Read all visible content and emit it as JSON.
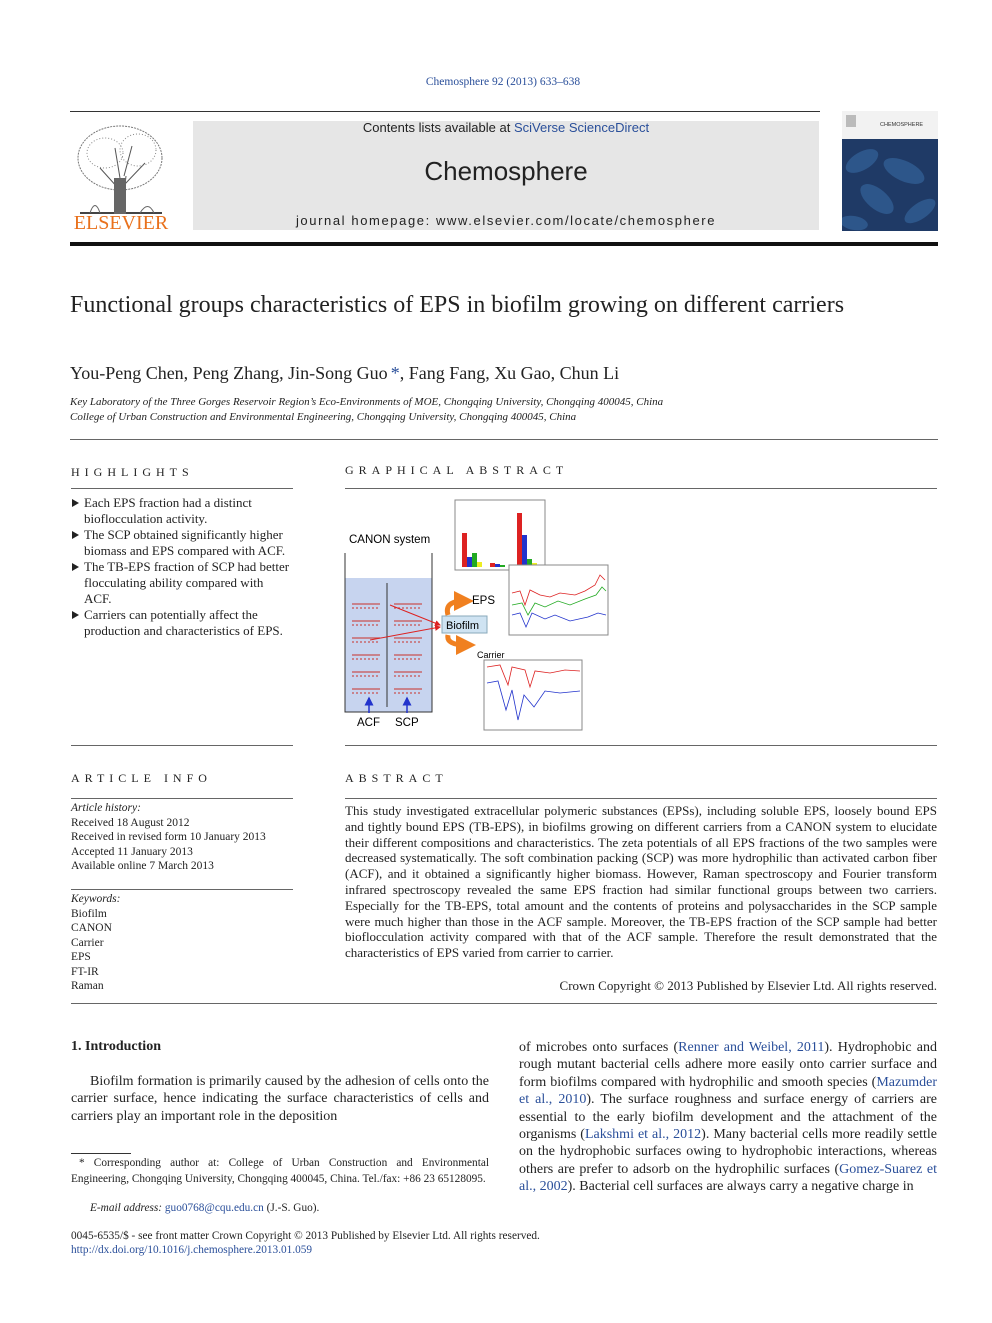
{
  "header": {
    "journal_ref": "Chemosphere 92 (2013) 633–638",
    "contents_prefix": "Contents lists available at ",
    "contents_link": "SciVerse ScienceDirect",
    "journal_name": "Chemosphere",
    "homepage_prefix": "journal homepage: ",
    "homepage_url": "www.elsevier.com/locate/chemosphere",
    "publisher_logo": "ELSEVIER",
    "cover_title": "CHEMOSPHERE"
  },
  "article": {
    "title": "Functional groups characteristics of EPS in biofilm growing on different carriers",
    "authors_before": "You-Peng Chen, Peng Zhang, Jin-Song Guo",
    "corresponding_mark": "*",
    "authors_after": ", Fang Fang, Xu Gao, Chun Li",
    "affiliations": [
      "Key Laboratory of the Three Gorges Reservoir Region’s Eco-Environments of MOE, Chongqing University, Chongqing 400045, China",
      "College of Urban Construction and Environmental Engineering, Chongqing University, Chongqing 400045, China"
    ]
  },
  "highlights": {
    "heading": "HIGHLIGHTS",
    "items": [
      "Each EPS fraction had a distinct bioflocculation activity.",
      "The SCP obtained significantly higher biomass and EPS compared with ACF.",
      "The TB-EPS fraction of SCP had better flocculating ability compared with ACF.",
      "Carriers can potentially affect the production and characteristics of EPS."
    ]
  },
  "graphical_abstract": {
    "heading": "GRAPHICAL ABSTRACT",
    "system": "CANON system",
    "eps": "EPS",
    "biofilm": "Biofilm",
    "carrier": "Carrier",
    "acf": "ACF",
    "scp": "SCP"
  },
  "article_info": {
    "heading": "ARTICLE INFO",
    "history_label": "Article history:",
    "history": [
      "Received 18 August 2012",
      "Received in revised form 10 January 2013",
      "Accepted 11 January 2013",
      "Available online 7 March 2013"
    ],
    "keywords_label": "Keywords:",
    "keywords": [
      "Biofilm",
      "CANON",
      "Carrier",
      "EPS",
      "FT-IR",
      "Raman"
    ]
  },
  "abstract": {
    "heading": "ABSTRACT",
    "text": "This study investigated extracellular polymeric substances (EPSs), including soluble EPS, loosely bound EPS and tightly bound EPS (TB-EPS), in biofilms growing on different carriers from a CANON system to elucidate their different compositions and characteristics. The zeta potentials of all EPS fractions of the two samples were decreased systematically. The soft combination packing (SCP) was more hydrophilic than activated carbon fiber (ACF), and it obtained a significantly higher biomass. However, Raman spectroscopy and Fourier transform infrared spectroscopy revealed the same EPS fraction had similar functional groups between two carriers. Especially for the TB-EPS, total amount and the contents of proteins and polysaccharides in the SCP sample were much higher than those in the ACF sample. Moreover, the TB-EPS fraction of the SCP sample had better bioflocculation activity compared with that of the ACF sample. Therefore the result demonstrated that the characteristics of EPS varied from carrier to carrier.",
    "copyright": "Crown Copyright © 2013 Published by Elsevier Ltd. All rights reserved."
  },
  "introduction": {
    "heading": "1. Introduction",
    "left_text": "Biofilm formation is primarily caused by the adhesion of cells onto the carrier surface, hence indicating the surface characteristics of cells and carriers play an important role in the deposition",
    "right_segments": [
      "of microbes onto surfaces (",
      {
        "cite": "Renner and Weibel, 2011"
      },
      "). Hydrophobic and rough mutant bacterial cells adhere more easily onto carrier surface and form biofilms compared with hydrophilic and smooth species (",
      {
        "cite": "Mazumder et al., 2010"
      },
      "). The surface roughness and surface energy of carriers are essential to the early biofilm development and the attachment of the organisms (",
      {
        "cite": "Lakshmi et al., 2012"
      },
      "). Many bacterial cells more readily settle on the hydrophobic surfaces owing to hydrophobic interactions, whereas others are prefer to adsorb on the hydrophilic surfaces (",
      {
        "cite": "Gomez-Suarez et al., 2002"
      },
      "). Bacterial cell surfaces are always carry a negative charge in"
    ]
  },
  "footnote": {
    "corresponding": "* Corresponding author at: College of Urban Construction and Environmental Engineering, Chongqing University, Chongqing 400045, China. Tel./fax: +86 23 65128095.",
    "email_label": "E-mail address: ",
    "email": "guo0768@cqu.edu.cn",
    "email_suffix": " (J.-S. Guo)."
  },
  "footer": {
    "issn": "0045-6535/$ - see front matter Crown Copyright © 2013 Published by Elsevier Ltd. All rights reserved.",
    "doi": "http://dx.doi.org/10.1016/j.chemosphere.2013.01.059"
  }
}
